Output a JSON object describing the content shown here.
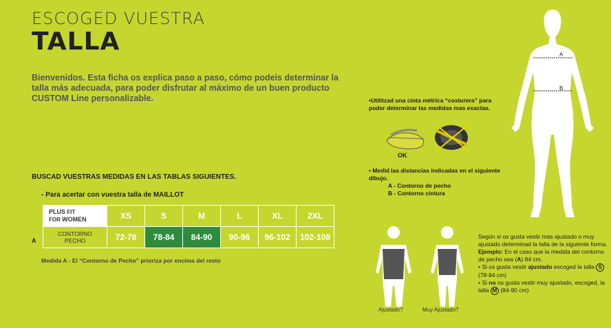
{
  "header": {
    "line1": "ESCOGED  VUESTRA",
    "line2": "TALLA"
  },
  "intro": "Bienvenidos. Esta ficha os explica paso a paso, cómo podeis determinar la talla más adecuada, para poder disfrutar al máximo de un buen producto CUSTOM Line personalizable.",
  "tables_heading": "BUSCAD VUESTRAS MEDIDAS EN LAS TABLAS SIGUIENTES.",
  "maillot_note": "- Para acertar con vuestra talla de MAILLOT",
  "table": {
    "fit_plus": "PLUS",
    "fit_fit": "FIT",
    "fit_for": "FOR",
    "fit_women": "WOMEN",
    "sizes": [
      "XS",
      "S",
      "M",
      "L",
      "XL",
      "2XL"
    ],
    "row_marker": "A",
    "row_label_1": "CONTORNO",
    "row_label_2": "PECHO",
    "values": [
      "72-78",
      "78-84",
      "84-90",
      "90-96",
      "96-102",
      "102-108"
    ]
  },
  "measure_note": "Medida A - El “Contorno de Pecho” prioriza por encima del resto",
  "tip1": "•Utilitzad una cinta métrica “costurera” para poder determinar las medidas mas exactas.",
  "ok_label": "OK",
  "tip2": "•  Medid las distancias indicadas en el siguiente dibujo.",
  "tip2_a": "A - Contorno de pecho",
  "tip2_b": "B - Contorno cintura",
  "figure_labels": {
    "a": "A",
    "b": "B",
    "ajustado": "Ajustado?",
    "muy_ajustado": "Muy Ajustado?"
  },
  "explain": {
    "p1": "Según si os gusta vestir más ajustado o muy ajustado determinad la talla de la siguiente forma.",
    "ejemplo_label": "Ejemplo:",
    "ejemplo": "En el caso que la medida del contorno de pecho sea",
    "ejemplo_a": "A",
    "ejemplo_val": "84 cm.",
    "b1_pre": "• Si os gusta vestir",
    "b1_bold": "ajustado",
    "b1_post": "escoged la talla",
    "b1_size": "S",
    "b1_range": "(78-84 cm)",
    "b2_pre": "• Si",
    "b2_bold": "no",
    "b2_post": "os gusta vestir muy ajustado, escoged,  la talla",
    "b2_size": "M",
    "b2_range": "(84-90 cm)"
  },
  "colors": {
    "background": "#c5d62f",
    "highlight": "#2f8a3d"
  }
}
